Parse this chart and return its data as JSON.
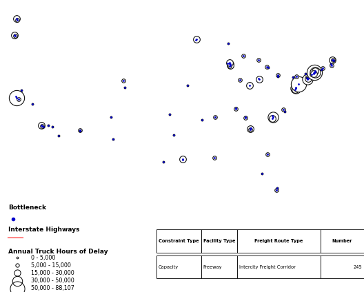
{
  "map_background": "#e8f5e8",
  "land_color": "#e8f4e8",
  "ocean_color": "#c8dff0",
  "state_edge_color": "#bbbbbb",
  "coast_color": "#999999",
  "highway_color": "#ff8888",
  "dot_color": "#0000cc",
  "circle_edge_color": "#111111",
  "legend_title_bottleneck": "Bottleneck",
  "legend_title_highway": "Interstate Highways",
  "legend_title_delay": "Annual Truck Hours of Delay",
  "delay_categories": [
    "0 - 5,000",
    "5,000 - 15,000",
    "15,000 - 30,000",
    "30,000 - 50,000",
    "50,000 - 88,107"
  ],
  "delay_sizes_pt": [
    2,
    4,
    7,
    11,
    16
  ],
  "table_headers": [
    "Constraint Type",
    "Facility Type",
    "Freight Route Type",
    "Number"
  ],
  "table_values": [
    "Capacity",
    "Freeway",
    "Intercity Freight Corridor",
    "245"
  ],
  "bottlenecks": [
    {
      "lon": -122.45,
      "lat": 37.75,
      "size": 11
    },
    {
      "lon": -122.35,
      "lat": 37.55,
      "size": 16
    },
    {
      "lon": -121.95,
      "lat": 37.35,
      "size": 4
    },
    {
      "lon": -118.25,
      "lat": 34.05,
      "size": 7
    },
    {
      "lon": -118.15,
      "lat": 33.95,
      "size": 4
    },
    {
      "lon": -118.0,
      "lat": 33.88,
      "size": 2
    },
    {
      "lon": -117.2,
      "lat": 34.1,
      "size": 2
    },
    {
      "lon": -119.8,
      "lat": 36.75,
      "size": 2
    },
    {
      "lon": -121.5,
      "lat": 38.55,
      "size": 2
    },
    {
      "lon": -122.35,
      "lat": 47.6,
      "size": 7
    },
    {
      "lon": -122.25,
      "lat": 47.5,
      "size": 4
    },
    {
      "lon": -122.65,
      "lat": 45.52,
      "size": 7
    },
    {
      "lon": -122.55,
      "lat": 45.42,
      "size": 4
    },
    {
      "lon": -112.05,
      "lat": 33.45,
      "size": 4
    },
    {
      "lon": -112.0,
      "lat": 33.35,
      "size": 2
    },
    {
      "lon": -105.0,
      "lat": 39.75,
      "size": 4
    },
    {
      "lon": -104.8,
      "lat": 38.85,
      "size": 2
    },
    {
      "lon": -96.8,
      "lat": 32.8,
      "size": 2
    },
    {
      "lon": -97.5,
      "lat": 35.5,
      "size": 2
    },
    {
      "lon": -90.2,
      "lat": 29.95,
      "size": 4
    },
    {
      "lon": -90.15,
      "lat": 35.15,
      "size": 4
    },
    {
      "lon": -87.65,
      "lat": 41.85,
      "size": 7
    },
    {
      "lon": -87.7,
      "lat": 41.7,
      "size": 7
    },
    {
      "lon": -87.75,
      "lat": 41.6,
      "size": 4
    },
    {
      "lon": -88.1,
      "lat": 41.9,
      "size": 2
    },
    {
      "lon": -87.9,
      "lat": 41.95,
      "size": 4
    },
    {
      "lon": -87.75,
      "lat": 42.0,
      "size": 7
    },
    {
      "lon": -86.15,
      "lat": 39.8,
      "size": 4
    },
    {
      "lon": -83.05,
      "lat": 40.05,
      "size": 4
    },
    {
      "lon": -83.0,
      "lat": 39.95,
      "size": 7
    },
    {
      "lon": -84.5,
      "lat": 39.1,
      "size": 7
    },
    {
      "lon": -84.3,
      "lat": 33.75,
      "size": 4
    },
    {
      "lon": -84.4,
      "lat": 33.65,
      "size": 7
    },
    {
      "lon": -84.45,
      "lat": 33.55,
      "size": 4
    },
    {
      "lon": -80.85,
      "lat": 35.25,
      "size": 7
    },
    {
      "lon": -80.8,
      "lat": 35.1,
      "size": 11
    },
    {
      "lon": -80.85,
      "lat": 34.95,
      "size": 7
    },
    {
      "lon": -79.05,
      "lat": 36.05,
      "size": 4
    },
    {
      "lon": -78.85,
      "lat": 35.85,
      "size": 2
    },
    {
      "lon": -77.05,
      "lat": 38.9,
      "size": 7
    },
    {
      "lon": -77.1,
      "lat": 38.75,
      "size": 11
    },
    {
      "lon": -77.15,
      "lat": 38.62,
      "size": 7
    },
    {
      "lon": -76.6,
      "lat": 39.3,
      "size": 16
    },
    {
      "lon": -75.2,
      "lat": 39.92,
      "size": 11
    },
    {
      "lon": -75.1,
      "lat": 39.98,
      "size": 7
    },
    {
      "lon": -74.2,
      "lat": 40.72,
      "size": 11
    },
    {
      "lon": -74.05,
      "lat": 40.77,
      "size": 16
    },
    {
      "lon": -73.95,
      "lat": 40.82,
      "size": 11
    },
    {
      "lon": -73.9,
      "lat": 41.0,
      "size": 7
    },
    {
      "lon": -72.7,
      "lat": 41.3,
      "size": 4
    },
    {
      "lon": -71.15,
      "lat": 42.4,
      "size": 7
    },
    {
      "lon": -71.05,
      "lat": 42.35,
      "size": 4
    },
    {
      "lon": -70.95,
      "lat": 42.28,
      "size": 2
    },
    {
      "lon": -81.65,
      "lat": 30.35,
      "size": 4
    },
    {
      "lon": -82.5,
      "lat": 27.95,
      "size": 2
    },
    {
      "lon": -80.2,
      "lat": 25.8,
      "size": 4
    },
    {
      "lon": -80.1,
      "lat": 26.1,
      "size": 2
    },
    {
      "lon": -93.25,
      "lat": 44.92,
      "size": 4
    },
    {
      "lon": -93.15,
      "lat": 45.02,
      "size": 7
    },
    {
      "lon": -88.0,
      "lat": 44.5,
      "size": 2
    },
    {
      "lon": -92.3,
      "lat": 34.75,
      "size": 2
    },
    {
      "lon": -94.6,
      "lat": 39.1,
      "size": 2
    },
    {
      "lon": -85.6,
      "lat": 42.9,
      "size": 4
    },
    {
      "lon": -83.1,
      "lat": 42.35,
      "size": 4
    },
    {
      "lon": -81.7,
      "lat": 41.5,
      "size": 4
    },
    {
      "lon": -81.5,
      "lat": 41.42,
      "size": 2
    },
    {
      "lon": -80.0,
      "lat": 40.45,
      "size": 4
    },
    {
      "lon": -79.95,
      "lat": 40.32,
      "size": 2
    },
    {
      "lon": -77.5,
      "lat": 40.22,
      "size": 2
    },
    {
      "lon": -76.9,
      "lat": 40.32,
      "size": 4
    },
    {
      "lon": -75.5,
      "lat": 40.62,
      "size": 2
    },
    {
      "lon": -75.3,
      "lat": 40.12,
      "size": 2
    },
    {
      "lon": -74.5,
      "lat": 40.52,
      "size": 4
    },
    {
      "lon": -74.15,
      "lat": 40.67,
      "size": 7
    },
    {
      "lon": -72.9,
      "lat": 41.12,
      "size": 2
    },
    {
      "lon": -71.4,
      "lat": 41.82,
      "size": 2
    },
    {
      "lon": -71.3,
      "lat": 41.72,
      "size": 4
    },
    {
      "lon": -95.4,
      "lat": 29.72,
      "size": 4
    },
    {
      "lon": -95.35,
      "lat": 29.78,
      "size": 7
    },
    {
      "lon": -98.5,
      "lat": 29.4,
      "size": 2
    },
    {
      "lon": -86.8,
      "lat": 36.22,
      "size": 2
    },
    {
      "lon": -86.75,
      "lat": 36.12,
      "size": 4
    },
    {
      "lon": -85.25,
      "lat": 35.12,
      "size": 2
    },
    {
      "lon": -85.2,
      "lat": 35.05,
      "size": 4
    },
    {
      "lon": -107.0,
      "lat": 35.12,
      "size": 2
    },
    {
      "lon": -106.7,
      "lat": 32.32,
      "size": 2
    },
    {
      "lon": -116.5,
      "lat": 33.85,
      "size": 2
    },
    {
      "lon": -115.5,
      "lat": 32.75,
      "size": 2
    }
  ]
}
